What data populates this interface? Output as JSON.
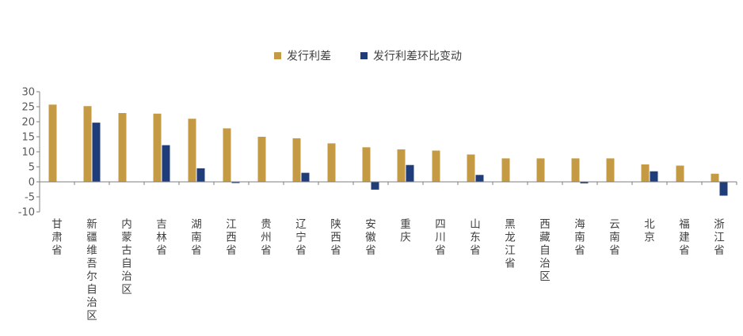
{
  "chart_data": {
    "type": "bar",
    "title": "",
    "xlabel": "",
    "ylabel": "",
    "ylim": [
      -10,
      30
    ],
    "yticks": [
      30,
      25,
      20,
      15,
      10,
      5,
      0,
      -5,
      -10
    ],
    "grid": false,
    "legend": "top-center",
    "categories": [
      "甘肃省",
      "新疆维吾尔自治区",
      "内蒙古自治区",
      "吉林省",
      "湖南省",
      "江西省",
      "贵州省",
      "辽宁省",
      "陕西省",
      "安徽省",
      "重庆",
      "四川省",
      "山东省",
      "黑龙江省",
      "西藏自治区",
      "海南省",
      "云南省",
      "北京",
      "福建省",
      "浙江省"
    ],
    "series": [
      {
        "name": "发行利差",
        "color": "#C49A45",
        "values": [
          25.7,
          25.2,
          22.9,
          22.7,
          21.0,
          17.8,
          15.0,
          14.5,
          12.8,
          11.5,
          10.8,
          10.4,
          9.1,
          7.8,
          7.8,
          7.8,
          7.8,
          5.8,
          5.4,
          2.7
        ]
      },
      {
        "name": "发行利差环比变动",
        "color": "#1F3D7A",
        "values": [
          0,
          19.7,
          0,
          12.2,
          4.5,
          -0.4,
          0,
          3.0,
          0,
          -2.6,
          5.6,
          0,
          2.3,
          0,
          0,
          -0.5,
          0,
          3.5,
          0,
          -4.6
        ]
      }
    ]
  }
}
